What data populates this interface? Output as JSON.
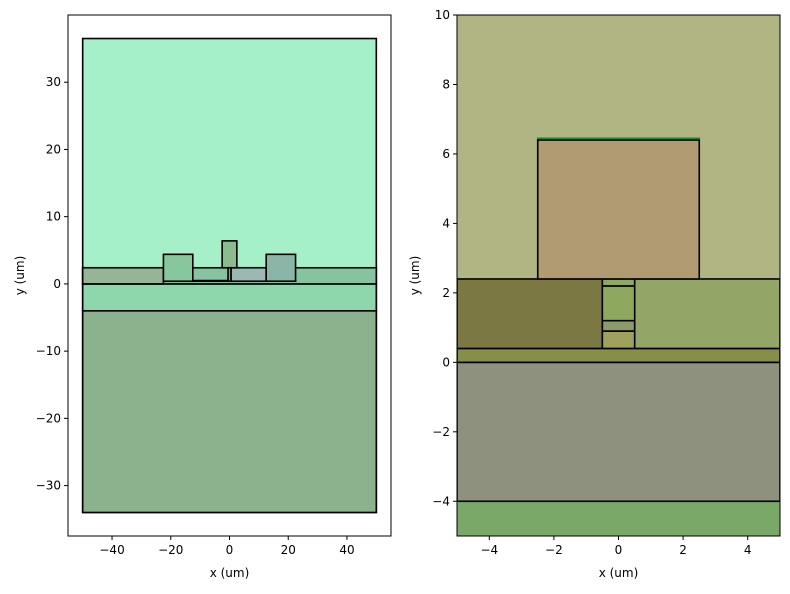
{
  "chart_data": [
    {
      "type": "geometry",
      "xlabel": "x (um)",
      "ylabel": "y (um)",
      "xlim": [
        -55,
        55
      ],
      "ylim": [
        -37.5,
        40
      ],
      "xticks": [
        -40,
        -20,
        0,
        20,
        40
      ],
      "yticks": [
        -30,
        -20,
        -10,
        0,
        10,
        20,
        30
      ],
      "shapes": [
        {
          "kind": "rect",
          "x0": -50,
          "x1": 50,
          "y0": -34,
          "y1": 36.5,
          "fill": "#a5f0c8"
        },
        {
          "kind": "rect",
          "x0": -50,
          "x1": 50,
          "y0": -34,
          "y1": -4,
          "fill": "#8cb28d"
        },
        {
          "kind": "rect",
          "x0": -50,
          "x1": 50,
          "y0": -4,
          "y1": 0,
          "fill": "#8ed6ab"
        },
        {
          "kind": "rect",
          "x0": -50,
          "x1": 50,
          "y0": 0,
          "y1": 2.4,
          "fill": "#85c49e"
        },
        {
          "kind": "rect",
          "x0": -50,
          "x1": -22.5,
          "y0": 0,
          "y1": 2.4,
          "fill": "#95b596"
        },
        {
          "kind": "rect",
          "x0": -22.5,
          "x1": 22.5,
          "y0": 0.4,
          "y1": 0.5,
          "fill": "#85c49e"
        },
        {
          "kind": "rect",
          "x0": 0.5,
          "x1": 12.5,
          "y0": 0.4,
          "y1": 2.4,
          "fill": "#9bb8b4"
        },
        {
          "kind": "rect",
          "x0": -22.5,
          "x1": -12.5,
          "y0": 0.4,
          "y1": 4.4,
          "fill": "#88c69d"
        },
        {
          "kind": "rect",
          "x0": 12.5,
          "x1": 22.5,
          "y0": 0.4,
          "y1": 4.4,
          "fill": "#89b6a7"
        },
        {
          "kind": "rect",
          "x0": -2.5,
          "x1": 2.5,
          "y0": 2.4,
          "y1": 6.4,
          "fill": "#8cbc8e"
        },
        {
          "kind": "rect",
          "x0": -0.5,
          "x1": 0.5,
          "y0": 0.4,
          "y1": 2.4,
          "fill": "#8ea95f"
        }
      ]
    },
    {
      "type": "geometry",
      "xlabel": "x (um)",
      "ylabel": "y (um)",
      "xlim": [
        -5,
        5
      ],
      "ylim": [
        -5,
        10
      ],
      "xticks": [
        -4,
        -2,
        0,
        2,
        4
      ],
      "yticks": [
        -4,
        -2,
        0,
        2,
        4,
        6,
        8,
        10
      ],
      "shapes": [
        {
          "kind": "rect",
          "x0": -5,
          "x1": 5,
          "y0": -5,
          "y1": 10,
          "fill": "#b1b583",
          "stroke": "none"
        },
        {
          "kind": "rect",
          "x0": -5,
          "x1": 5,
          "y0": -5,
          "y1": -4,
          "fill": "#7aa868",
          "stroke": "none"
        },
        {
          "kind": "rect",
          "x0": -5,
          "x1": 5,
          "y0": -4,
          "y1": 0,
          "fill": "#8d917e"
        },
        {
          "kind": "rect",
          "x0": -5,
          "x1": 5,
          "y0": 0,
          "y1": 0.4,
          "fill": "#878e48"
        },
        {
          "kind": "rect",
          "x0": -5,
          "x1": -0.5,
          "y0": 0.4,
          "y1": 2.4,
          "fill": "#7b7843"
        },
        {
          "kind": "rect",
          "x0": 0.5,
          "x1": 5,
          "y0": 0.4,
          "y1": 2.4,
          "fill": "#93a567"
        },
        {
          "kind": "rect",
          "x0": -0.5,
          "x1": 0.5,
          "y0": 0.4,
          "y1": 0.9,
          "fill": "#9fa25d"
        },
        {
          "kind": "rect",
          "x0": -0.5,
          "x1": 0.5,
          "y0": 0.9,
          "y1": 1.2,
          "fill": "#8d9a6a"
        },
        {
          "kind": "rect",
          "x0": -0.5,
          "x1": 0.5,
          "y0": 1.2,
          "y1": 2.2,
          "fill": "#8ea95f"
        },
        {
          "kind": "rect",
          "x0": -0.5,
          "x1": 0.5,
          "y0": 2.2,
          "y1": 2.4,
          "fill": "#8ea95f"
        },
        {
          "kind": "rect",
          "x0": -2.5,
          "x1": 2.5,
          "y0": 2.4,
          "y1": 6.45,
          "fill": "none",
          "stroke": "#1a8c1a"
        },
        {
          "kind": "rect",
          "x0": -2.5,
          "x1": 2.5,
          "y0": 2.4,
          "y1": 6.4,
          "fill": "#b09b73"
        }
      ]
    }
  ]
}
